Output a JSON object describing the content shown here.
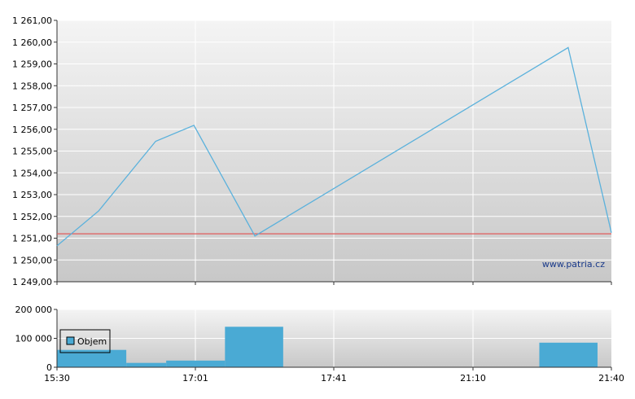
{
  "chart_data": [
    {
      "type": "line",
      "x_ticks": [
        "15:30",
        "17:01",
        "17:41",
        "21:10",
        "21:40"
      ],
      "y_ticks": [
        "1 249,00",
        "1 250,00",
        "1 251,00",
        "1 252,00",
        "1 253,00",
        "1 254,00",
        "1 255,00",
        "1 256,00",
        "1 257,00",
        "1 258,00",
        "1 259,00",
        "1 260,00",
        "1 261,00"
      ],
      "ylim": [
        1249,
        1261
      ],
      "x": [
        0,
        0.075,
        0.178,
        0.247,
        0.357,
        0.922,
        1.0
      ],
      "values": [
        1250.65,
        1252.25,
        1255.45,
        1256.18,
        1251.1,
        1259.75,
        1251.25
      ],
      "reference_line": 1251.2,
      "line_color": "#5ab1dc",
      "reference_color": "#e05a5a",
      "grid": true,
      "watermark": "www.patria.cz"
    },
    {
      "type": "bar",
      "series_name": "Objem",
      "y_ticks": [
        "0",
        "100 000",
        "200 000"
      ],
      "ylim": [
        0,
        200000
      ],
      "bars": [
        {
          "x0": 0.0,
          "x1": 0.125,
          "value": 60000
        },
        {
          "x0": 0.125,
          "x1": 0.197,
          "value": 15000
        },
        {
          "x0": 0.197,
          "x1": 0.303,
          "value": 23000
        },
        {
          "x0": 0.303,
          "x1": 0.408,
          "value": 140000
        },
        {
          "x0": 0.87,
          "x1": 0.975,
          "value": 85000
        }
      ],
      "bar_color": "#4aaad4",
      "legend": "top-left"
    }
  ]
}
